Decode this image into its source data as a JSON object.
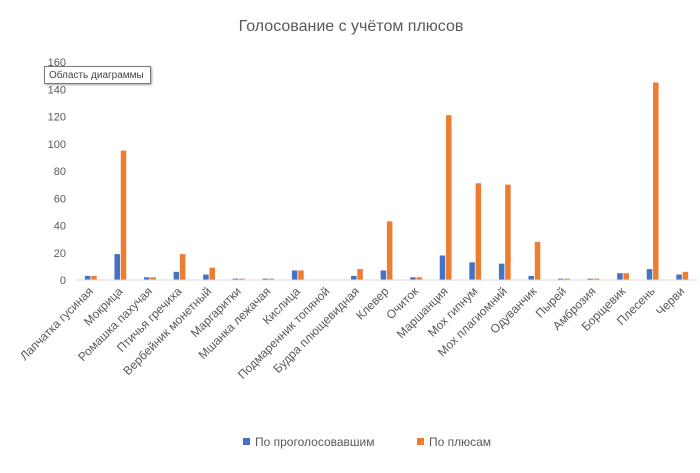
{
  "chart_data": {
    "type": "bar",
    "title": "Голосование с учётом плюсов",
    "categories": [
      "Лапчатка гусиная",
      "Мокрица",
      "Ромашка пахучая",
      "Птичья гречиха",
      "Вербейник монетный",
      "Маргаритки",
      "Мшанка лежачая",
      "Кислица",
      "Подмаренник топяной",
      "Будра плющевидная",
      "Клевер",
      "Очиток",
      "Маршанция",
      "Мох гипнум",
      "Мох плагиомний",
      "Одуванчик",
      "Пырей",
      "Амброзия",
      "Борщевик",
      "Плесень",
      "Черви"
    ],
    "series": [
      {
        "name": "По проголосовавшим",
        "color": "#4472C4",
        "values": [
          3,
          19,
          2,
          6,
          4,
          1,
          1,
          7,
          0,
          3,
          7,
          2,
          18,
          13,
          12,
          3,
          1,
          1,
          5,
          8,
          4
        ]
      },
      {
        "name": "По плюсам",
        "color": "#ED7D31",
        "values": [
          3,
          95,
          2,
          19,
          9,
          1,
          1,
          7,
          0,
          8,
          43,
          2,
          121,
          71,
          70,
          28,
          1,
          1,
          5,
          145,
          6
        ]
      }
    ],
    "ylim": [
      0,
      160
    ],
    "yticks": [
      0,
      20,
      40,
      60,
      80,
      100,
      120,
      140,
      160
    ],
    "xlabel": "",
    "ylabel": "",
    "grid": false,
    "legend_position": "bottom"
  },
  "tooltip": "Область диаграммы",
  "colors": {
    "axis": "#d9d9d9",
    "text": "#595959"
  }
}
